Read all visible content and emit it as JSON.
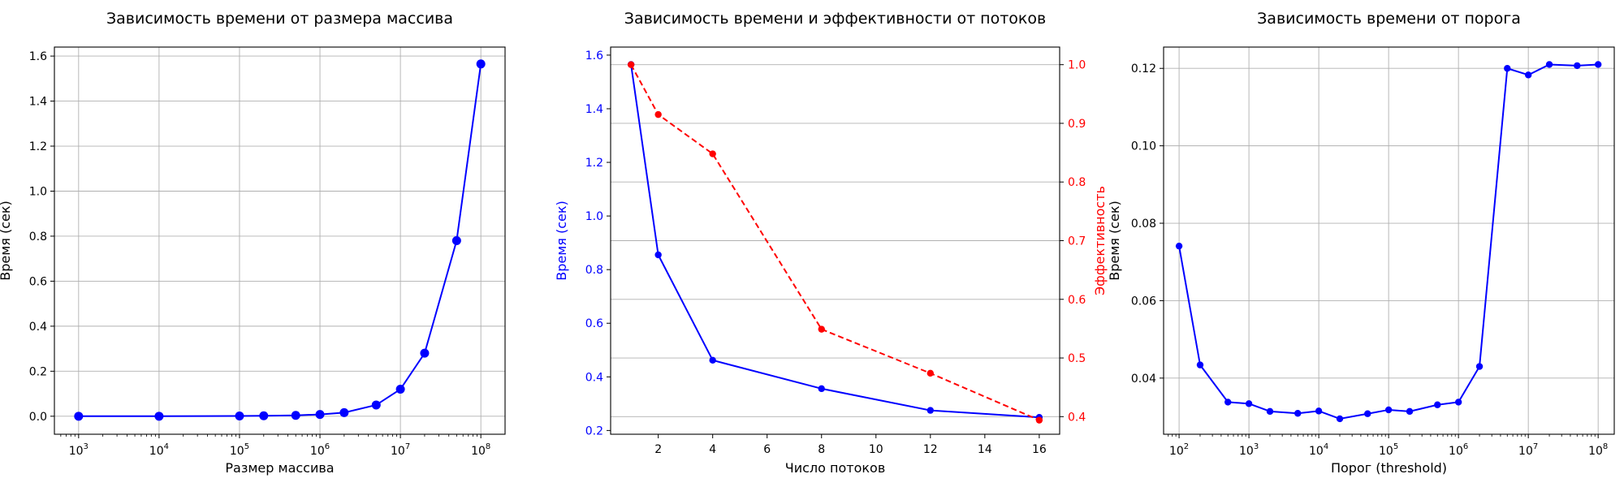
{
  "figure": {
    "width": 2000,
    "height": 600,
    "background": "#ffffff"
  },
  "chart_data": [
    {
      "type": "line",
      "title": "Зависимость времени от размера массива",
      "xlabel": "Размер массива",
      "ylabel": "Время (сек)",
      "xscale": "log",
      "xlim": [
        500,
        200000000
      ],
      "ylim": [
        -0.08,
        1.64
      ],
      "xticks": [
        1000,
        10000,
        100000,
        1000000,
        10000000,
        100000000
      ],
      "xtick_labels": [
        {
          "b": "10",
          "e": "3"
        },
        {
          "b": "10",
          "e": "4"
        },
        {
          "b": "10",
          "e": "5"
        },
        {
          "b": "10",
          "e": "6"
        },
        {
          "b": "10",
          "e": "7"
        },
        {
          "b": "10",
          "e": "8"
        }
      ],
      "yticks": [
        0.0,
        0.2,
        0.4,
        0.6,
        0.8,
        1.0,
        1.2,
        1.4,
        1.6
      ],
      "ytick_labels": [
        "0.0",
        "0.2",
        "0.4",
        "0.6",
        "0.8",
        "1.0",
        "1.2",
        "1.4",
        "1.6"
      ],
      "grid": true,
      "series": [
        {
          "color": "#0000ff",
          "style": "solid",
          "marker_r": 5.5,
          "x": [
            1000,
            10000,
            100000,
            200000,
            500000,
            1000000,
            2000000,
            5000000,
            10000000,
            20000000,
            50000000,
            100000000
          ],
          "y": [
            0.0,
            0.0,
            0.001,
            0.002,
            0.004,
            0.008,
            0.016,
            0.05,
            0.12,
            0.28,
            0.78,
            1.565
          ]
        }
      ]
    },
    {
      "type": "line",
      "title": "Зависимость времени и эффективности от потоков",
      "xlabel": "Число потоков",
      "ylabel": "Время (сек)",
      "ylabel_color": "#0000ff",
      "y2label": "Эффективность",
      "y2label_color": "#ff0000",
      "xscale": "linear",
      "xlim": [
        0.25,
        16.75
      ],
      "ylim": [
        0.186,
        1.63
      ],
      "y2lim": [
        0.37,
        1.03
      ],
      "xticks": [
        2,
        4,
        6,
        8,
        10,
        12,
        14,
        16
      ],
      "xtick_labels": [
        "2",
        "4",
        "6",
        "8",
        "10",
        "12",
        "14",
        "16"
      ],
      "yticks": [
        0.2,
        0.4,
        0.6,
        0.8,
        1.0,
        1.2,
        1.4,
        1.6
      ],
      "ytick_labels": [
        "0.2",
        "0.4",
        "0.6",
        "0.8",
        "1.0",
        "1.2",
        "1.4",
        "1.6"
      ],
      "y2ticks": [
        0.4,
        0.5,
        0.6,
        0.7,
        0.8,
        0.9,
        1.0
      ],
      "y2tick_labels": [
        "0.4",
        "0.5",
        "0.6",
        "0.7",
        "0.8",
        "0.9",
        "1.0"
      ],
      "grid": "y2",
      "series": [
        {
          "axis": "y",
          "color": "#0000ff",
          "style": "solid",
          "marker_r": 4.2,
          "x": [
            1,
            2,
            4,
            8,
            12,
            16
          ],
          "y": [
            1.565,
            0.855,
            0.462,
            0.356,
            0.275,
            0.249
          ]
        },
        {
          "axis": "y2",
          "color": "#ff0000",
          "style": "dashed",
          "marker_r": 4.2,
          "x": [
            1,
            2,
            4,
            8,
            12,
            16
          ],
          "y": [
            1.0,
            0.915,
            0.848,
            0.549,
            0.474,
            0.394
          ]
        }
      ]
    },
    {
      "type": "line",
      "title": "Зависимость времени от порога",
      "xlabel": "Порог (threshold)",
      "ylabel": "Время (сек)",
      "xscale": "log",
      "xlim": [
        60,
        170000000
      ],
      "ylim": [
        0.0255,
        0.1255
      ],
      "xticks": [
        100,
        1000,
        10000,
        100000,
        1000000,
        10000000,
        100000000
      ],
      "xtick_labels": [
        {
          "b": "10",
          "e": "2"
        },
        {
          "b": "10",
          "e": "3"
        },
        {
          "b": "10",
          "e": "4"
        },
        {
          "b": "10",
          "e": "5"
        },
        {
          "b": "10",
          "e": "6"
        },
        {
          "b": "10",
          "e": "7"
        },
        {
          "b": "10",
          "e": "8"
        }
      ],
      "yticks": [
        0.04,
        0.06,
        0.08,
        0.1,
        0.12
      ],
      "ytick_labels": [
        "0.04",
        "0.06",
        "0.08",
        "0.10",
        "0.12"
      ],
      "grid": true,
      "series": [
        {
          "color": "#0000ff",
          "style": "solid",
          "marker_r": 4.2,
          "x": [
            100,
            200,
            500,
            1000,
            2000,
            5000,
            10000,
            20000,
            50000,
            100000,
            200000,
            500000,
            1000000,
            2000000,
            5000000,
            10000000,
            20000000,
            50000000,
            100000000
          ],
          "y": [
            0.0741,
            0.0434,
            0.0338,
            0.0334,
            0.0314,
            0.0309,
            0.0315,
            0.0295,
            0.0308,
            0.0318,
            0.0314,
            0.0331,
            0.0338,
            0.043,
            0.12,
            0.1183,
            0.121,
            0.1207,
            0.121
          ]
        }
      ]
    }
  ]
}
